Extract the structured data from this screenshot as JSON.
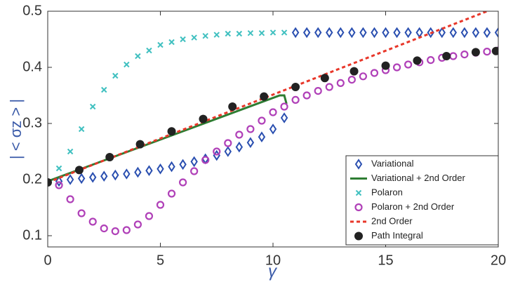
{
  "chart_data": {
    "type": "line",
    "xlabel": "γ",
    "ylabel": "| < σz > |",
    "xlim": [
      0,
      20
    ],
    "ylim": [
      0.08,
      0.5
    ],
    "xticks": [
      0,
      5,
      10,
      15,
      20
    ],
    "yticks": [
      0.1,
      0.2,
      0.3,
      0.4,
      0.5
    ],
    "grid": false,
    "legend": "lower right",
    "series": [
      {
        "name": "Variational",
        "color": "#2a4fb0",
        "marker": "diamond",
        "x": [
          0.5,
          1,
          1.5,
          2,
          2.5,
          3,
          3.5,
          4,
          4.5,
          5,
          5.5,
          6,
          6.5,
          7,
          7.5,
          8,
          8.5,
          9,
          9.5,
          10,
          10.5,
          11,
          11.5,
          12,
          12.5,
          13,
          13.5,
          14,
          14.5,
          15,
          15.5,
          16,
          16.5,
          17,
          17.5,
          18,
          18.5,
          19,
          19.5,
          20
        ],
        "values": [
          0.197,
          0.2,
          0.202,
          0.204,
          0.206,
          0.208,
          0.21,
          0.213,
          0.216,
          0.219,
          0.223,
          0.227,
          0.232,
          0.237,
          0.243,
          0.25,
          0.258,
          0.266,
          0.276,
          0.29,
          0.31,
          0.462,
          0.462,
          0.462,
          0.462,
          0.462,
          0.462,
          0.462,
          0.462,
          0.462,
          0.462,
          0.462,
          0.462,
          0.462,
          0.462,
          0.462,
          0.462,
          0.462,
          0.462,
          0.462
        ]
      },
      {
        "name": "Variational + 2nd Order",
        "color": "#2e7d32",
        "marker": "line",
        "x": [
          0,
          10.3,
          10.5,
          10.6
        ],
        "values": [
          0.197,
          0.35,
          0.35,
          0.335
        ]
      },
      {
        "name": "Polaron",
        "color": "#40c0c0",
        "marker": "x",
        "x": [
          0.5,
          1,
          1.5,
          2,
          2.5,
          3,
          3.5,
          4,
          4.5,
          5,
          5.5,
          6,
          6.5,
          7,
          7.5,
          8,
          8.5,
          9,
          9.5,
          10,
          10.5
        ],
        "values": [
          0.22,
          0.25,
          0.29,
          0.33,
          0.36,
          0.385,
          0.405,
          0.42,
          0.43,
          0.44,
          0.445,
          0.45,
          0.453,
          0.456,
          0.458,
          0.46,
          0.46,
          0.461,
          0.461,
          0.462,
          0.462
        ]
      },
      {
        "name": "Polaron + 2nd Order",
        "color": "#b040b8",
        "marker": "circle",
        "x": [
          0.5,
          1,
          1.5,
          2,
          2.5,
          3,
          3.5,
          4,
          4.5,
          5,
          5.5,
          6,
          6.5,
          7,
          7.5,
          8,
          8.5,
          9,
          9.5,
          10,
          10.5,
          11,
          11.5,
          12,
          12.5,
          13,
          13.5,
          14,
          14.5,
          15,
          15.5,
          16,
          16.5,
          17,
          17.5,
          18,
          18.5,
          19,
          19.5,
          20
        ],
        "values": [
          0.19,
          0.165,
          0.14,
          0.125,
          0.113,
          0.108,
          0.11,
          0.12,
          0.135,
          0.155,
          0.175,
          0.195,
          0.215,
          0.235,
          0.25,
          0.265,
          0.28,
          0.29,
          0.305,
          0.32,
          0.33,
          0.342,
          0.35,
          0.358,
          0.365,
          0.372,
          0.378,
          0.384,
          0.39,
          0.395,
          0.4,
          0.405,
          0.409,
          0.413,
          0.417,
          0.42,
          0.423,
          0.426,
          0.428,
          0.43
        ]
      },
      {
        "name": "2nd Order",
        "color": "#e8372a",
        "marker": "dash",
        "x": [
          0,
          19.5
        ],
        "values": [
          0.195,
          0.5
        ]
      },
      {
        "name": "Path Integral",
        "color": "#222222",
        "marker": "dot",
        "x": [
          0,
          1.4,
          2.75,
          4.1,
          5.5,
          6.9,
          8.2,
          9.6,
          11,
          12.3,
          13.6,
          15,
          16.4,
          17.7,
          19,
          19.9
        ],
        "values": [
          0.195,
          0.217,
          0.24,
          0.263,
          0.286,
          0.308,
          0.33,
          0.348,
          0.365,
          0.381,
          0.393,
          0.403,
          0.412,
          0.42,
          0.427,
          0.429
        ]
      }
    ]
  }
}
